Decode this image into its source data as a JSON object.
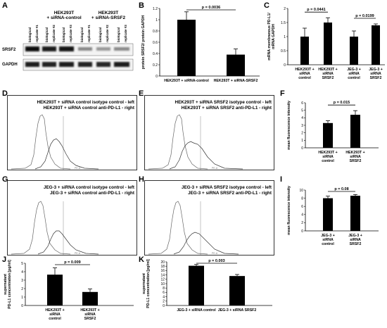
{
  "labels": {
    "A": "A",
    "B": "B",
    "C": "C",
    "D": "D",
    "E": "E",
    "F": "F",
    "G": "G",
    "H": "H",
    "I": "I",
    "J": "J",
    "K": "K"
  },
  "panelA": {
    "group1": "HEK293T\n+ siRNA-control",
    "group2": "HEK293T\n+ siRNA-SRSF2",
    "lanes": [
      "biological replicate #1",
      "biological replicate #2",
      "biological replicate #3",
      "biological replicate #1",
      "biological replicate #2",
      "biological replicate #3"
    ],
    "rows": [
      "SRSF2",
      "GAPDH"
    ]
  },
  "flow": {
    "D": [
      "HEK293T + siRNA control isotype control - left",
      "HEK293T + siRNA control anti-PD-L1 - right"
    ],
    "E": [
      "HEK293T + siRNA SRSF2 isotype control - left",
      "HEK293T + siRNA SRSF2 anti-PD-L1 - right"
    ],
    "G": [
      "JEG-3 + siRNA control isotype control - left",
      "JEG-3 + siRNA control anti-PD-L1 - right"
    ],
    "H": [
      "JEG-3 + siRNA SRSF2 isotype control - left",
      "JEG-3 + siRNA SRSF2 anti-PD-L1 - right"
    ],
    "axis": "PE-A"
  },
  "chart_data": [
    {
      "panel": "B",
      "type": "bar",
      "categories": [
        "HEK293T + siRNA-control",
        "HEK293T + siRNA-SRSF2"
      ],
      "values": [
        1.0,
        0.38
      ],
      "errors": [
        0.14,
        0.1
      ],
      "ylabel": "protein SRSF2/ protein GAPDH",
      "ylim": [
        0,
        1.2
      ],
      "ticks": [
        0,
        0.2,
        0.4,
        0.6,
        0.8,
        1,
        1.2
      ],
      "annotation": "p = 0.0036"
    },
    {
      "panel": "C",
      "type": "bar",
      "categories": [
        "HEK293T + siRNA control",
        "HEK293T + siRNA SRSF2",
        "JEG-3 + siRNA control",
        "JEG-3 + siRNA SRSF2"
      ],
      "values": [
        1.0,
        1.5,
        1.0,
        1.4
      ],
      "errors": [
        0.3,
        0.17,
        0.2,
        0.05
      ],
      "ylabel": "mRNA membranous PD-L1/ mRNA GAPDH",
      "ylim": [
        0,
        2
      ],
      "ticks": [
        0,
        0.5,
        1,
        1.5,
        2
      ],
      "annotations": [
        "p = 0.0441",
        "p = 0.0199"
      ]
    },
    {
      "panel": "F",
      "type": "bar",
      "categories": [
        "HEK293T + siRNA control",
        "HEK293T + siRNA SRSF2"
      ],
      "values": [
        3.3,
        4.4
      ],
      "errors": [
        0.3,
        0.55
      ],
      "ylabel": "mean fluorescence intensity",
      "ylim": [
        0,
        6
      ],
      "ticks": [
        0,
        1,
        2,
        3,
        4,
        5,
        6
      ],
      "annotation": "p = 0.015"
    },
    {
      "panel": "I",
      "type": "bar",
      "categories": [
        "JEG-3 + siRNA control",
        "JEG-3 + siRNA SRSF2"
      ],
      "values": [
        8.0,
        8.6
      ],
      "errors": [
        0.5,
        0.3
      ],
      "ylabel": "mean fluorescence intensity",
      "ylim": [
        0,
        10
      ],
      "ticks": [
        0,
        2,
        4,
        6,
        8,
        10
      ],
      "annotation": "p = 0.08"
    },
    {
      "panel": "J",
      "type": "bar",
      "categories": [
        "HEK293T + siRNA control",
        "HEK293T + siRNA SRSF2"
      ],
      "values": [
        3.65,
        1.6
      ],
      "errors": [
        0.8,
        0.35
      ],
      "ylabel": "supernatant PD-L1 concentration [pg/ml]",
      "ylim": [
        0,
        5
      ],
      "ticks": [
        0,
        1,
        2,
        3,
        4,
        5
      ],
      "annotation": "p = 0.009"
    },
    {
      "panel": "K",
      "type": "bar",
      "categories": [
        "JEG-3 + siRNA control",
        "JEG-3 + siRNA SRSF2"
      ],
      "values": [
        18.2,
        13.5
      ],
      "errors": [
        0.6,
        0.7
      ],
      "ylabel": "supernatant PD-L1 concentration [pg/ml]",
      "ylim": [
        0,
        20
      ],
      "ticks": [
        0,
        2,
        4,
        6,
        8,
        10,
        12,
        14,
        16,
        18,
        20
      ],
      "annotation": "p = 0.003"
    }
  ]
}
